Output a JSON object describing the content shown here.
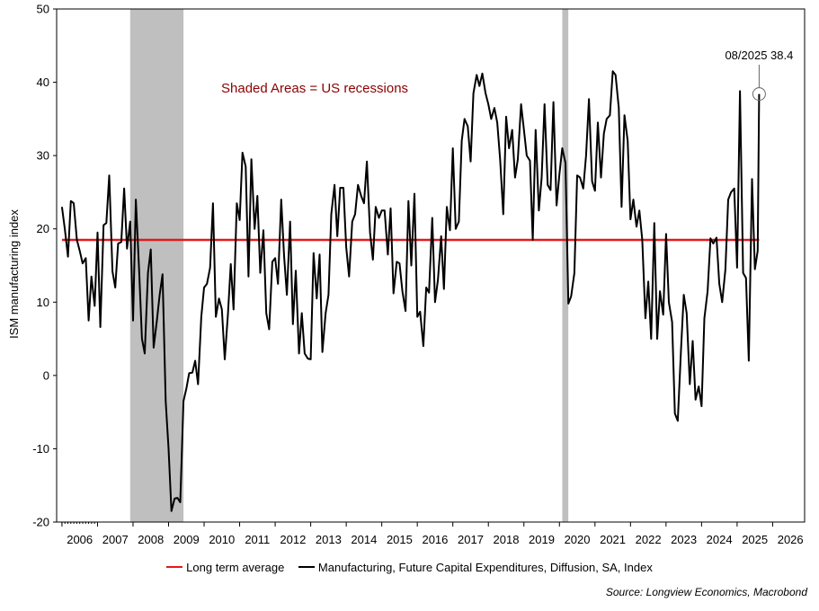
{
  "chart_data": {
    "type": "line",
    "ylabel": "ISM manufacturing index",
    "ylim": [
      -20,
      50
    ],
    "yticks": [
      -20,
      -10,
      0,
      10,
      20,
      30,
      40,
      50
    ],
    "xlim": [
      2005.85,
      2026.9
    ],
    "xticks": [
      "2006",
      "2007",
      "2008",
      "2009",
      "2010",
      "2011",
      "2012",
      "2013",
      "2014",
      "2015",
      "2016",
      "2017",
      "2018",
      "2019",
      "2020",
      "2021",
      "2022",
      "2023",
      "2024",
      "2025",
      "2026"
    ],
    "grid": false,
    "annotation_text": "Shaded Areas = US recessions",
    "callout": {
      "label": "08/2025 38.4",
      "x": 2025.62,
      "y": 38.4
    },
    "recessions": [
      [
        2007.92,
        2009.42
      ],
      [
        2020.08,
        2020.25
      ]
    ],
    "colors": {
      "series": "#000000",
      "average": "#e31a1c",
      "recession": "#bfbfbf",
      "annotation": "#8b0000"
    },
    "series": [
      {
        "name": "Manufacturing, Future Capital Expenditures, Diffusion, SA, Index",
        "values": [
          [
            2006.0,
            23
          ],
          [
            2006.08,
            20
          ],
          [
            2006.17,
            16.2
          ],
          [
            2006.25,
            23.8
          ],
          [
            2006.33,
            23.5
          ],
          [
            2006.42,
            18.5
          ],
          [
            2006.5,
            17
          ],
          [
            2006.58,
            15.3
          ],
          [
            2006.67,
            16
          ],
          [
            2006.75,
            7.5
          ],
          [
            2006.83,
            13.5
          ],
          [
            2006.92,
            9.5
          ],
          [
            2007.0,
            19.5
          ],
          [
            2007.08,
            6.6
          ],
          [
            2007.17,
            20.5
          ],
          [
            2007.25,
            20.8
          ],
          [
            2007.33,
            27.3
          ],
          [
            2007.42,
            14.2
          ],
          [
            2007.5,
            12
          ],
          [
            2007.58,
            18
          ],
          [
            2007.67,
            18.2
          ],
          [
            2007.75,
            25.5
          ],
          [
            2007.83,
            17.3
          ],
          [
            2007.92,
            21
          ],
          [
            2008.0,
            7.5
          ],
          [
            2008.08,
            24
          ],
          [
            2008.17,
            14.5
          ],
          [
            2008.25,
            5
          ],
          [
            2008.33,
            3
          ],
          [
            2008.42,
            14
          ],
          [
            2008.5,
            17.2
          ],
          [
            2008.58,
            3.8
          ],
          [
            2008.67,
            7.5
          ],
          [
            2008.75,
            11
          ],
          [
            2008.83,
            13.8
          ],
          [
            2008.92,
            -3.5
          ],
          [
            2009.0,
            -10
          ],
          [
            2009.08,
            -18.5
          ],
          [
            2009.17,
            -16.8
          ],
          [
            2009.25,
            -16.7
          ],
          [
            2009.33,
            -17.3
          ],
          [
            2009.42,
            -3.5
          ],
          [
            2009.5,
            -1.8
          ],
          [
            2009.58,
            0.3
          ],
          [
            2009.67,
            0.4
          ],
          [
            2009.75,
            2
          ],
          [
            2009.83,
            -1.2
          ],
          [
            2009.92,
            8
          ],
          [
            2010.0,
            12
          ],
          [
            2010.08,
            12.5
          ],
          [
            2010.17,
            14.7
          ],
          [
            2010.25,
            23.5
          ],
          [
            2010.33,
            8
          ],
          [
            2010.42,
            10.5
          ],
          [
            2010.5,
            9
          ],
          [
            2010.58,
            2.2
          ],
          [
            2010.67,
            8.3
          ],
          [
            2010.75,
            15.2
          ],
          [
            2010.83,
            9
          ],
          [
            2010.92,
            23.5
          ],
          [
            2011.0,
            21.2
          ],
          [
            2011.08,
            30.4
          ],
          [
            2011.17,
            28.5
          ],
          [
            2011.25,
            13.5
          ],
          [
            2011.33,
            29.5
          ],
          [
            2011.42,
            20
          ],
          [
            2011.5,
            24.5
          ],
          [
            2011.58,
            14
          ],
          [
            2011.67,
            19.8
          ],
          [
            2011.75,
            8.5
          ],
          [
            2011.83,
            6.3
          ],
          [
            2011.92,
            15.5
          ],
          [
            2012.0,
            16
          ],
          [
            2012.08,
            12.5
          ],
          [
            2012.17,
            24
          ],
          [
            2012.25,
            16.3
          ],
          [
            2012.33,
            11
          ],
          [
            2012.42,
            21
          ],
          [
            2012.5,
            7
          ],
          [
            2012.58,
            14.3
          ],
          [
            2012.67,
            3
          ],
          [
            2012.75,
            8.5
          ],
          [
            2012.83,
            3
          ],
          [
            2012.92,
            2.3
          ],
          [
            2013.0,
            2.2
          ],
          [
            2013.08,
            16.7
          ],
          [
            2013.17,
            10.5
          ],
          [
            2013.25,
            16.5
          ],
          [
            2013.33,
            3.2
          ],
          [
            2013.42,
            8.5
          ],
          [
            2013.5,
            11
          ],
          [
            2013.58,
            22
          ],
          [
            2013.67,
            26
          ],
          [
            2013.75,
            19
          ],
          [
            2013.83,
            25.6
          ],
          [
            2013.92,
            25.6
          ],
          [
            2014.0,
            17.5
          ],
          [
            2014.08,
            13.5
          ],
          [
            2014.17,
            21
          ],
          [
            2014.25,
            22
          ],
          [
            2014.33,
            26
          ],
          [
            2014.42,
            24.5
          ],
          [
            2014.5,
            23.5
          ],
          [
            2014.58,
            29.2
          ],
          [
            2014.67,
            19.5
          ],
          [
            2014.75,
            15.8
          ],
          [
            2014.83,
            23
          ],
          [
            2014.92,
            21.5
          ],
          [
            2015.0,
            22.5
          ],
          [
            2015.08,
            22.5
          ],
          [
            2015.17,
            16.5
          ],
          [
            2015.25,
            22.8
          ],
          [
            2015.33,
            11.2
          ],
          [
            2015.42,
            15.5
          ],
          [
            2015.5,
            15.3
          ],
          [
            2015.58,
            11.5
          ],
          [
            2015.67,
            8.8
          ],
          [
            2015.75,
            23.8
          ],
          [
            2015.83,
            15
          ],
          [
            2015.92,
            24.8
          ],
          [
            2016.0,
            8
          ],
          [
            2016.08,
            8.7
          ],
          [
            2016.17,
            4
          ],
          [
            2016.25,
            12
          ],
          [
            2016.33,
            11.3
          ],
          [
            2016.42,
            21.5
          ],
          [
            2016.5,
            10
          ],
          [
            2016.58,
            13
          ],
          [
            2016.67,
            19
          ],
          [
            2016.75,
            11.8
          ],
          [
            2016.83,
            23
          ],
          [
            2016.92,
            19.8
          ],
          [
            2017.0,
            31
          ],
          [
            2017.08,
            20
          ],
          [
            2017.17,
            21
          ],
          [
            2017.25,
            32
          ],
          [
            2017.33,
            35
          ],
          [
            2017.42,
            34
          ],
          [
            2017.5,
            29.2
          ],
          [
            2017.58,
            38.5
          ],
          [
            2017.67,
            41
          ],
          [
            2017.75,
            39.5
          ],
          [
            2017.83,
            41.2
          ],
          [
            2017.92,
            38.5
          ],
          [
            2018.0,
            37
          ],
          [
            2018.08,
            35
          ],
          [
            2018.17,
            36.5
          ],
          [
            2018.25,
            34.5
          ],
          [
            2018.33,
            29.5
          ],
          [
            2018.42,
            22
          ],
          [
            2018.5,
            35.3
          ],
          [
            2018.58,
            31
          ],
          [
            2018.67,
            33.5
          ],
          [
            2018.75,
            27
          ],
          [
            2018.83,
            29.5
          ],
          [
            2018.92,
            37
          ],
          [
            2019.0,
            33.5
          ],
          [
            2019.08,
            30
          ],
          [
            2019.17,
            29.3
          ],
          [
            2019.25,
            18.5
          ],
          [
            2019.33,
            33.5
          ],
          [
            2019.42,
            22.5
          ],
          [
            2019.5,
            27
          ],
          [
            2019.58,
            37
          ],
          [
            2019.67,
            26
          ],
          [
            2019.75,
            25.3
          ],
          [
            2019.83,
            37.3
          ],
          [
            2019.92,
            23.2
          ],
          [
            2020.0,
            27.5
          ],
          [
            2020.08,
            31
          ],
          [
            2020.17,
            29
          ],
          [
            2020.25,
            9.8
          ],
          [
            2020.33,
            10.8
          ],
          [
            2020.42,
            14
          ],
          [
            2020.5,
            27.3
          ],
          [
            2020.58,
            27
          ],
          [
            2020.67,
            25.5
          ],
          [
            2020.75,
            30
          ],
          [
            2020.83,
            37.7
          ],
          [
            2020.92,
            26.5
          ],
          [
            2021.0,
            25.2
          ],
          [
            2021.08,
            34.5
          ],
          [
            2021.17,
            27
          ],
          [
            2021.25,
            33
          ],
          [
            2021.33,
            35
          ],
          [
            2021.42,
            35.5
          ],
          [
            2021.5,
            41.5
          ],
          [
            2021.58,
            41
          ],
          [
            2021.67,
            36.5
          ],
          [
            2021.75,
            23
          ],
          [
            2021.83,
            35.5
          ],
          [
            2021.92,
            32
          ],
          [
            2022.0,
            21.3
          ],
          [
            2022.08,
            24
          ],
          [
            2022.17,
            20.3
          ],
          [
            2022.25,
            22.5
          ],
          [
            2022.33,
            18.5
          ],
          [
            2022.42,
            7.8
          ],
          [
            2022.5,
            12.8
          ],
          [
            2022.58,
            5
          ],
          [
            2022.67,
            20.8
          ],
          [
            2022.75,
            5
          ],
          [
            2022.83,
            11.5
          ],
          [
            2022.92,
            8.3
          ],
          [
            2023.0,
            19.3
          ],
          [
            2023.08,
            10
          ],
          [
            2023.17,
            7.3
          ],
          [
            2023.25,
            -5.2
          ],
          [
            2023.33,
            -6.2
          ],
          [
            2023.42,
            3.5
          ],
          [
            2023.5,
            11
          ],
          [
            2023.58,
            8.5
          ],
          [
            2023.67,
            -1.2
          ],
          [
            2023.75,
            4.7
          ],
          [
            2023.83,
            -3.3
          ],
          [
            2023.92,
            -1.5
          ],
          [
            2024.0,
            -4.2
          ],
          [
            2024.08,
            7.8
          ],
          [
            2024.17,
            11.5
          ],
          [
            2024.25,
            18.7
          ],
          [
            2024.33,
            18
          ],
          [
            2024.42,
            18.8
          ],
          [
            2024.5,
            12.5
          ],
          [
            2024.58,
            10
          ],
          [
            2024.67,
            14.5
          ],
          [
            2024.75,
            24
          ],
          [
            2024.83,
            25
          ],
          [
            2024.92,
            25.5
          ],
          [
            2025.0,
            14.7
          ],
          [
            2025.08,
            38.8
          ],
          [
            2025.17,
            14
          ],
          [
            2025.25,
            13.3
          ],
          [
            2025.33,
            2
          ],
          [
            2025.42,
            26.8
          ],
          [
            2025.5,
            14.5
          ],
          [
            2025.58,
            17
          ],
          [
            2025.62,
            38.4
          ]
        ]
      },
      {
        "name": "Long term average",
        "values": [
          [
            2006.0,
            18.5
          ],
          [
            2025.62,
            18.5
          ]
        ]
      }
    ],
    "legend": [
      "Long term average",
      "Manufacturing, Future Capital Expenditures, Diffusion, SA, Index"
    ]
  },
  "footer": {
    "source": "Source: Longview Economics, Macrobond"
  }
}
